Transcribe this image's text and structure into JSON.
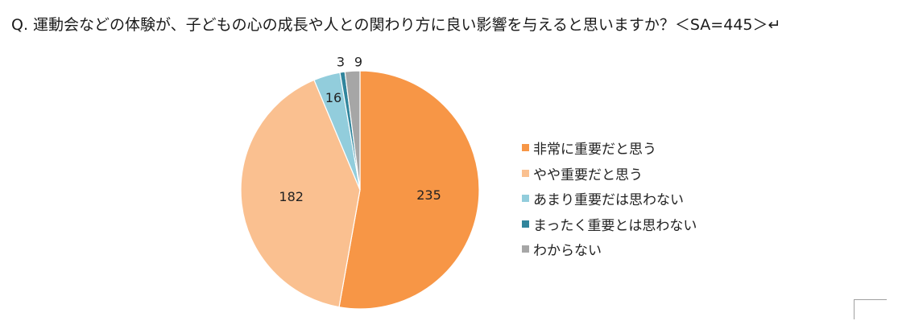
{
  "title": "Q. 運動会などの体験が、子どもの心の成長や人との関わり方に良い影響を与えると思いますか？＜SA=445＞↵",
  "chart_data": {
    "type": "pie",
    "title": "",
    "start": "12 o'clock, clockwise",
    "legend_position": "right",
    "slices": [
      {
        "label": "非常に重要だと思う",
        "value": 235,
        "color": "#F79646"
      },
      {
        "label": "やや重要だと思う",
        "value": 182,
        "color": "#FAC090"
      },
      {
        "label": "あまり重要だは思わない",
        "value": 16,
        "color": "#92CDDC"
      },
      {
        "label": "まったく重要とは思わない",
        "value": 3,
        "color": "#31859C"
      },
      {
        "label": "わからない",
        "value": 9,
        "color": "#A6A6A6"
      }
    ]
  }
}
